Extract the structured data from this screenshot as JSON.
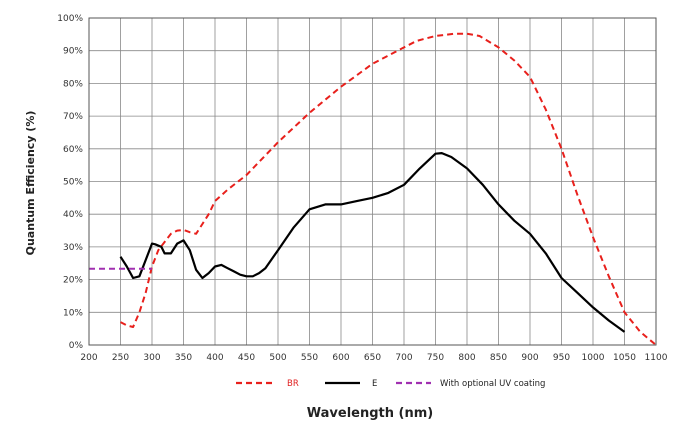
{
  "chart_data": {
    "type": "line",
    "title": "",
    "xlabel": "Wavelength (nm)",
    "ylabel": "Quantum Efficiency (%)",
    "xlim": [
      200,
      1100
    ],
    "ylim": [
      0,
      100
    ],
    "x_ticks": [
      "200",
      "250",
      "300",
      "350",
      "400",
      "450",
      "500",
      "550",
      "600",
      "650",
      "700",
      "750",
      "800",
      "850",
      "900",
      "950",
      "1000",
      "1050",
      "1100"
    ],
    "y_ticks": [
      "0%",
      "10%",
      "20%",
      "30%",
      "40%",
      "50%",
      "60%",
      "70%",
      "80%",
      "90%",
      "100%"
    ],
    "grid": true,
    "legend_position": "bottom",
    "series": [
      {
        "name": "BR",
        "color": "#e8201c",
        "style": "dashed",
        "x": [
          250,
          260,
          270,
          280,
          290,
          300,
          310,
          320,
          330,
          340,
          350,
          360,
          370,
          380,
          390,
          400,
          420,
          450,
          470,
          500,
          550,
          600,
          650,
          700,
          720,
          750,
          780,
          800,
          820,
          850,
          875,
          900,
          925,
          950,
          975,
          1000,
          1025,
          1050,
          1075,
          1100
        ],
        "y": [
          7,
          6,
          5.5,
          10,
          16,
          24,
          29,
          31.5,
          34,
          35,
          35.2,
          34.5,
          34,
          37,
          40,
          44,
          47.5,
          52,
          56,
          62,
          71,
          79,
          86,
          91,
          93,
          94.5,
          95.2,
          95.2,
          94.5,
          91,
          87,
          82,
          72,
          60,
          46,
          33,
          21,
          10,
          4,
          0
        ]
      },
      {
        "name": "E",
        "color": "#000000",
        "style": "solid",
        "x": [
          250,
          260,
          270,
          280,
          290,
          300,
          305,
          315,
          320,
          330,
          340,
          350,
          360,
          370,
          380,
          390,
          400,
          410,
          420,
          430,
          440,
          450,
          460,
          470,
          480,
          500,
          525,
          550,
          575,
          600,
          625,
          650,
          675,
          700,
          725,
          750,
          760,
          775,
          800,
          825,
          850,
          875,
          900,
          925,
          950,
          975,
          1000,
          1025,
          1050
        ],
        "y": [
          27,
          24,
          20.5,
          21,
          26,
          31,
          30.8,
          30,
          28,
          28,
          31,
          32,
          29,
          23,
          20.5,
          22,
          24,
          24.5,
          23.5,
          22.5,
          21.5,
          21,
          21,
          22,
          23.5,
          29,
          36,
          41.5,
          43,
          43,
          44,
          45,
          46.5,
          49,
          54,
          58.5,
          58.7,
          57.5,
          54,
          49,
          43,
          38,
          34,
          28,
          20.5,
          16,
          11.5,
          7.5,
          4
        ]
      },
      {
        "name": "With optional UV coating",
        "color": "#a030b0",
        "style": "dashed",
        "x": [
          200,
          300
        ],
        "y": [
          23.3,
          23.3
        ]
      }
    ]
  }
}
